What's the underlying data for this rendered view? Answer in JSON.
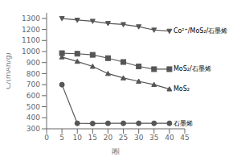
{
  "chart_data": {
    "type": "line",
    "xlabel": "圈",
    "ylabel": "C/(mAh/g)",
    "xlim": [
      0,
      45
    ],
    "xticks": [
      0,
      5,
      10,
      15,
      20,
      25,
      30,
      35,
      40,
      45
    ],
    "ylim": [
      300,
      1350
    ],
    "yticks": [
      300,
      400,
      500,
      600,
      700,
      800,
      900,
      1000,
      1100,
      1200,
      1300
    ],
    "grid": false,
    "series": [
      {
        "name": "Co²⁺/MoS₂/石墨烯",
        "color": "#555555",
        "marker": "triangle-down",
        "x": [
          5,
          10,
          15,
          20,
          25,
          30,
          35,
          40
        ],
        "values": [
          1300,
          1285,
          1275,
          1255,
          1245,
          1225,
          1195,
          1185
        ]
      },
      {
        "name": "MoS₂/石墨烯",
        "color": "#555555",
        "marker": "square",
        "x": [
          5,
          10,
          15,
          20,
          25,
          30,
          35,
          40
        ],
        "values": [
          985,
          980,
          970,
          940,
          905,
          865,
          840,
          840
        ]
      },
      {
        "name": "MoS₂",
        "color": "#555555",
        "marker": "triangle",
        "x": [
          5,
          10,
          15,
          20,
          25,
          30,
          35,
          40
        ],
        "values": [
          950,
          910,
          865,
          800,
          760,
          730,
          700,
          660
        ]
      },
      {
        "name": "石墨烯",
        "color": "#555555",
        "marker": "circle",
        "x": [
          5,
          10,
          15,
          20,
          25,
          30,
          35,
          40
        ],
        "values": [
          700,
          350,
          348,
          350,
          350,
          350,
          350,
          350
        ]
      }
    ]
  }
}
